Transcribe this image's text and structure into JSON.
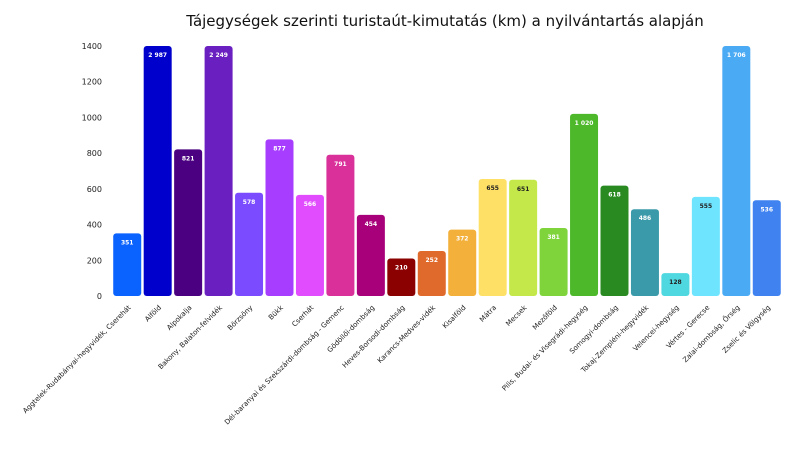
{
  "chart_data": {
    "type": "bar",
    "title": "Tájegységek szerinti turistaút-kimutatás (km) a nyilvántartás alapján",
    "xlabel": "",
    "ylabel": "",
    "ylim": [
      0,
      1400
    ],
    "yticks": [
      0,
      200,
      400,
      600,
      800,
      1000,
      1200,
      1400
    ],
    "grid": false,
    "legend": "none",
    "categories": [
      "Aggtelek-Rudabányai-hegyvidék, Cserehát",
      "Alföld",
      "Alpokalja",
      "Bakony, Balaton-felvidék",
      "Börzsöny",
      "Bükk",
      "Cserhát",
      "Dél-baranyai és Szekszárdi-dombság - Gemenc",
      "Gödöllői-dombság",
      "Heves-Borsodi-dombság",
      "Karancs-Medves-vidék",
      "Kisalföld",
      "Mátra",
      "Mecsek",
      "Mezőföld",
      "Pilis, Budai- és Visegrádi-hegység",
      "Somogyi-dombság",
      "Tokaj-Zempléni-hegyvidék",
      "Velencei-hegység",
      "Vértes - Gerecse",
      "Zalai-dombság, Őrség",
      "Zselic és Völgység"
    ],
    "values": [
      351,
      2987,
      821,
      2249,
      578,
      877,
      566,
      791,
      454,
      210,
      252,
      372,
      655,
      651,
      381,
      1020,
      618,
      486,
      128,
      555,
      1706,
      536
    ],
    "data_labels": [
      "351",
      "2 987",
      "821",
      "2 249",
      "578",
      "877",
      "566",
      "791",
      "454",
      "210",
      "252",
      "372",
      "655",
      "651",
      "381",
      "1 020",
      "618",
      "486",
      "128",
      "555",
      "1 706",
      "536"
    ],
    "colors": [
      "#0a62ff",
      "#0000cc",
      "#4a0080",
      "#6a1fc0",
      "#7b4cff",
      "#a63dff",
      "#e24cff",
      "#d9309a",
      "#a8007a",
      "#8b0000",
      "#e06a2c",
      "#f3b03a",
      "#ffe066",
      "#c4e84a",
      "#7fd43c",
      "#4cb82a",
      "#2a8a22",
      "#3a9aaa",
      "#4fd8e0",
      "#6fe4ff",
      "#4aaaf4",
      "#3f82f0"
    ],
    "label_colors": [
      "#ffffff",
      "#ffffff",
      "#ffffff",
      "#ffffff",
      "#ffffff",
      "#ffffff",
      "#ffffff",
      "#ffffff",
      "#ffffff",
      "#ffffff",
      "#ffffff",
      "#ffffff",
      "#222222",
      "#222222",
      "#ffffff",
      "#ffffff",
      "#ffffff",
      "#ffffff",
      "#222222",
      "#222222",
      "#ffffff",
      "#ffffff"
    ]
  }
}
